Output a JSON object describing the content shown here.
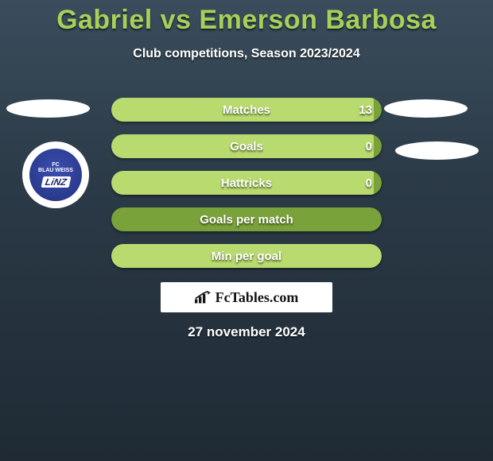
{
  "title": "Gabriel vs Emerson Barbosa",
  "title_color": "#a6d05a",
  "subtitle": "Club competitions, Season 2023/2024",
  "date": "27 november 2024",
  "club": {
    "top": "FC",
    "mid": "BLAU WEISS",
    "city": "LiNZ"
  },
  "brand": "FcTables.com",
  "bars": {
    "track_color": "#7aa23a",
    "fill_color": "#b8da6e",
    "items": [
      {
        "label": "Matches",
        "value": "13",
        "fill_pct": 97
      },
      {
        "label": "Goals",
        "value": "0",
        "fill_pct": 97
      },
      {
        "label": "Hattricks",
        "value": "0",
        "fill_pct": 97
      },
      {
        "label": "Goals per match",
        "value": "",
        "fill_pct": 0
      },
      {
        "label": "Min per goal",
        "value": "",
        "fill_pct": 100
      }
    ]
  }
}
